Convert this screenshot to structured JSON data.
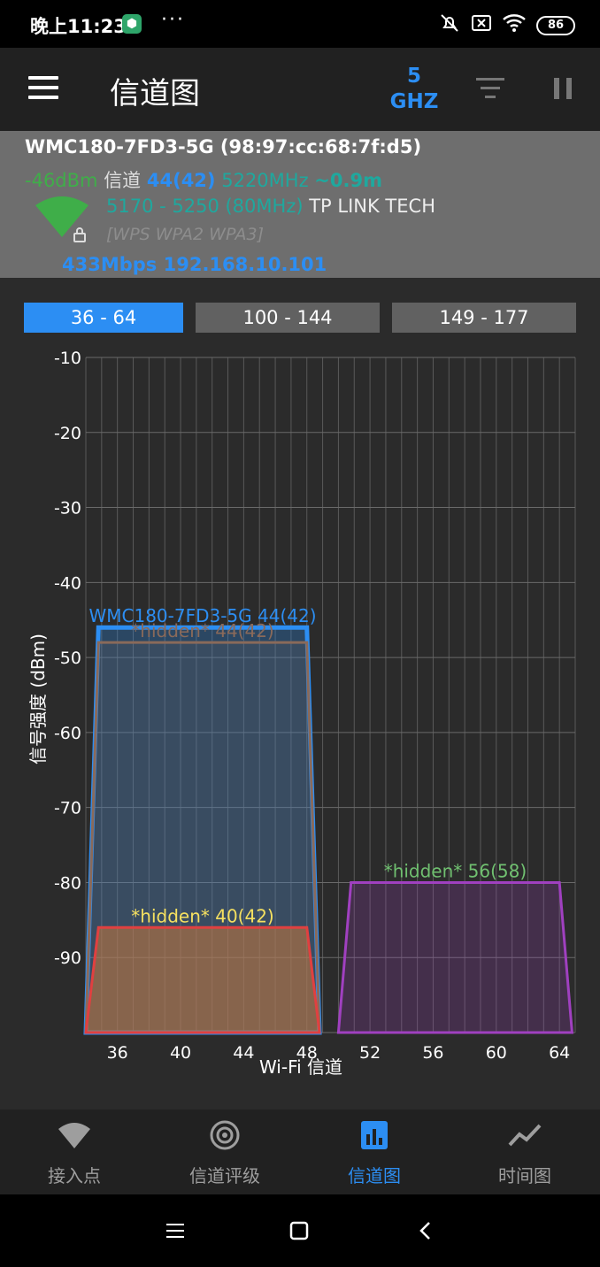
{
  "status_bar": {
    "time": "晚上11:23",
    "dots": "···",
    "battery": "86"
  },
  "app_bar": {
    "title": "信道图",
    "band_number": "5",
    "band_unit": "GHZ"
  },
  "ap": {
    "ssid_line": "WMC180-7FD3-5G (98:97:cc:68:7f:d5)",
    "signal": "-46dBm",
    "channel_label": "信道",
    "channel": "44(42)",
    "frequency": "5220MHz",
    "distance": "~0.9m",
    "range": "5170 - 5250 (80MHz)",
    "vendor": "TP LINK TECH",
    "security": "[WPS WPA2 WPA3]",
    "link": "433Mbps 192.168.10.101"
  },
  "range_tabs": [
    "36 - 64",
    "100 - 144",
    "149 - 177"
  ],
  "colors": {
    "accent": "#2c8ef3",
    "signal_green": "#3fae49",
    "teal": "#1fa89e"
  },
  "chart_data": {
    "type": "area",
    "ylabel": "信号强度 (dBm)",
    "xlabel": "Wi-Fi 信道",
    "y_ticks": [
      -10,
      -20,
      -30,
      -40,
      -50,
      -60,
      -70,
      -80,
      -90
    ],
    "ylim": [
      -100,
      -10
    ],
    "x_ticks": [
      36,
      40,
      44,
      48,
      52,
      56,
      60,
      64
    ],
    "series": [
      {
        "name": "WMC180-7FD3-5G 44(42)",
        "channel_start": 36,
        "channel_end": 48,
        "peak_dbm": -46,
        "color": "#2c8ef3"
      },
      {
        "name": "*hidden* 44(42)",
        "channel_start": 36,
        "channel_end": 48,
        "peak_dbm": -48,
        "color": "#8a6a5a"
      },
      {
        "name": "*hidden* 40(42)",
        "channel_start": 36,
        "channel_end": 48,
        "peak_dbm": -86,
        "color": "#e04040"
      },
      {
        "name": "*hidden* 56(58)",
        "channel_start": 52,
        "channel_end": 64,
        "peak_dbm": -80,
        "color": "#a040c0"
      }
    ]
  },
  "bottom_nav": [
    {
      "label": "接入点",
      "icon": "wifi-icon"
    },
    {
      "label": "信道评级",
      "icon": "radar-icon"
    },
    {
      "label": "信道图",
      "icon": "bar-chart-icon"
    },
    {
      "label": "时间图",
      "icon": "line-graph-icon"
    }
  ],
  "active_nav_index": 2
}
